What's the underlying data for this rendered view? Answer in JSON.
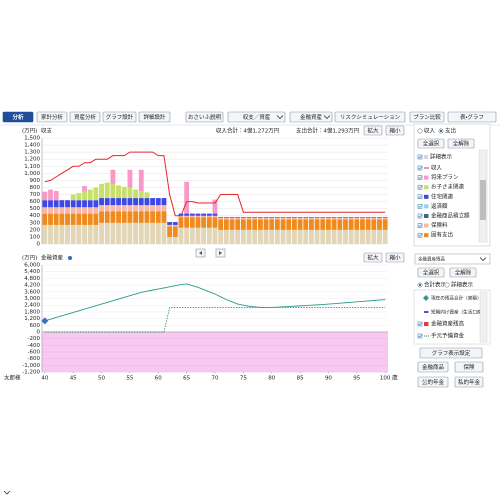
{
  "toolbar": {
    "tabs": [
      "分析",
      "家計分析",
      "資産分析",
      "グラフ設計",
      "詳細設計"
    ],
    "buttons": [
      "おさいふ説明",
      "収支／資産",
      "金融資産",
      "リスクシミュレーション",
      "プラン比較",
      "表・グラフ"
    ]
  },
  "chart_data": [
    {
      "type": "bar",
      "stacked": true,
      "unit": "(万円)",
      "title": "収支",
      "summary": [
        "収入合計：4億1,272万円",
        "支出合計：4億1,293万円"
      ],
      "zoom": [
        "拡大",
        "縮小"
      ],
      "x": [
        40,
        41,
        42,
        43,
        44,
        45,
        46,
        47,
        48,
        49,
        50,
        51,
        52,
        53,
        54,
        55,
        56,
        57,
        58,
        59,
        60,
        61,
        62,
        63,
        64,
        65,
        66,
        67,
        68,
        69,
        70,
        71,
        72,
        73,
        74,
        75,
        76,
        77,
        78,
        79,
        80,
        81,
        82,
        83,
        84,
        85,
        86,
        87,
        88,
        89,
        90,
        91,
        92,
        93,
        94,
        95,
        96,
        97,
        98,
        99,
        100
      ],
      "xlim": [
        39.5,
        100.5
      ],
      "ylim": [
        0,
        1500
      ],
      "yticks": [
        0,
        100,
        200,
        300,
        400,
        500,
        600,
        700,
        800,
        900,
        {
          "value": 1000,
          "label": "1,000"
        },
        {
          "value": 1100,
          "label": "1,100"
        },
        {
          "value": 1200,
          "label": "1,200"
        },
        {
          "value": 1300,
          "label": "1,300"
        },
        {
          "value": 1400,
          "label": "1,400"
        },
        {
          "value": 1500,
          "label": "1,500"
        }
      ],
      "grid": true,
      "series": [
        {
          "color": "#e2d6b6",
          "values": [
            270,
            270,
            270,
            270,
            270,
            270,
            270,
            270,
            270,
            270,
            300,
            300,
            300,
            300,
            300,
            300,
            300,
            300,
            300,
            300,
            300,
            300,
            100,
            100,
            230,
            230,
            230,
            230,
            230,
            230,
            230,
            200,
            200,
            200,
            200,
            200,
            200,
            200,
            200,
            200,
            200,
            200,
            200,
            200,
            200,
            200,
            200,
            200,
            200,
            200,
            200,
            200,
            200,
            200,
            200,
            200,
            200,
            200,
            200,
            200,
            200
          ]
        },
        {
          "name": "固有支出",
          "color": "#f08a1c",
          "values": [
            160,
            160,
            160,
            160,
            160,
            160,
            160,
            160,
            160,
            160,
            160,
            160,
            160,
            160,
            160,
            160,
            160,
            160,
            160,
            160,
            160,
            160,
            150,
            150,
            150,
            150,
            150,
            150,
            150,
            150,
            150,
            150,
            150,
            150,
            150,
            150,
            150,
            150,
            150,
            150,
            150,
            150,
            150,
            150,
            150,
            150,
            150,
            150,
            150,
            150,
            150,
            150,
            150,
            150,
            150,
            150,
            150,
            150,
            150,
            150,
            150
          ]
        },
        {
          "name": "保険料",
          "color": "#f7b8a6",
          "values": [
            90,
            90,
            90,
            90,
            90,
            90,
            90,
            90,
            90,
            90,
            90,
            90,
            90,
            90,
            90,
            90,
            90,
            90,
            90,
            90,
            90,
            90,
            20,
            20,
            20,
            20,
            20,
            20,
            20,
            20,
            20,
            20,
            20,
            20,
            20,
            20,
            20,
            20,
            20,
            20,
            20,
            20,
            20,
            20,
            20,
            20,
            20,
            20,
            20,
            20,
            20,
            20,
            20,
            20,
            20,
            20,
            20,
            20,
            20,
            20,
            20
          ]
        },
        {
          "name": "住宅関連",
          "color": "#3d47e6",
          "values": [
            100,
            100,
            100,
            100,
            100,
            100,
            100,
            100,
            100,
            100,
            100,
            100,
            100,
            100,
            100,
            100,
            100,
            100,
            100,
            100,
            100,
            100,
            40,
            40,
            30,
            30,
            30,
            30,
            30,
            30,
            30,
            10,
            10,
            10,
            10,
            10,
            10,
            10,
            10,
            10,
            10,
            10,
            10,
            10,
            10,
            10,
            10,
            10,
            10,
            10,
            10,
            10,
            10,
            10,
            10,
            10,
            10,
            10,
            10,
            10,
            10
          ]
        },
        {
          "name": "お子さま関連",
          "color": "#c7e06a",
          "values": [
            0,
            0,
            0,
            0,
            0,
            80,
            100,
            120,
            150,
            180,
            200,
            220,
            200,
            180,
            160,
            150,
            120,
            100,
            80,
            0,
            0,
            0,
            0,
            0,
            0,
            0,
            0,
            0,
            0,
            0,
            0,
            0,
            0,
            0,
            0,
            0,
            0,
            0,
            0,
            0,
            0,
            0,
            0,
            0,
            0,
            0,
            0,
            0,
            0,
            0,
            0,
            0,
            0,
            0,
            0,
            0,
            0,
            0,
            0,
            0,
            0
          ]
        },
        {
          "name": "将来プラン",
          "color": "#f79ac8",
          "values": [
            120,
            150,
            130,
            0,
            0,
            0,
            0,
            80,
            0,
            0,
            0,
            0,
            200,
            0,
            0,
            250,
            0,
            300,
            0,
            0,
            0,
            0,
            0,
            0,
            0,
            450,
            0,
            0,
            0,
            0,
            200,
            0,
            0,
            0,
            0,
            0,
            0,
            0,
            0,
            0,
            0,
            0,
            0,
            0,
            0,
            0,
            0,
            0,
            0,
            0,
            0,
            0,
            0,
            0,
            0,
            0,
            0,
            0,
            0,
            0,
            0
          ]
        }
      ],
      "line": {
        "name": "収入",
        "color": "#e8262a",
        "values": [
          880,
          900,
          950,
          1000,
          1050,
          1100,
          1100,
          1150,
          1150,
          1200,
          1200,
          1200,
          1250,
          1250,
          1250,
          1300,
          1300,
          1300,
          1300,
          1300,
          1250,
          1250,
          700,
          400,
          400,
          600,
          600,
          580,
          580,
          580,
          580,
          700,
          700,
          700,
          700,
          450,
          450,
          450,
          450,
          450,
          450,
          450,
          450,
          450,
          450,
          450,
          450,
          450,
          450,
          450,
          450,
          450,
          450,
          450,
          450,
          450,
          450,
          450,
          450,
          450,
          450
        ]
      }
    },
    {
      "type": "line",
      "unit": "(万円)",
      "title": "金融資産",
      "zoom": [
        "拡大",
        "縮小"
      ],
      "x": [
        40,
        41,
        42,
        43,
        44,
        45,
        46,
        47,
        48,
        49,
        50,
        51,
        52,
        53,
        54,
        55,
        56,
        57,
        58,
        59,
        60,
        61,
        62,
        63,
        64,
        65,
        66,
        67,
        68,
        69,
        70,
        71,
        72,
        73,
        74,
        75,
        76,
        77,
        78,
        79,
        80,
        81,
        82,
        83,
        84,
        85,
        86,
        87,
        88,
        89,
        90,
        91,
        92,
        93,
        94,
        95,
        96,
        97,
        98,
        99,
        100
      ],
      "xlim": [
        39.5,
        100.5
      ],
      "xticks": [
        40,
        45,
        50,
        55,
        60,
        65,
        70,
        75,
        80,
        85,
        90,
        95,
        100
      ],
      "x_prefix": "太郎様",
      "x_suffix": "歳",
      "ylim": [
        -1200,
        6000
      ],
      "yticks": [
        {
          "value": 6000,
          "label": "6,000"
        },
        {
          "value": 5400,
          "label": "5,400"
        },
        {
          "value": 4800,
          "label": "4,800"
        },
        {
          "value": 4200,
          "label": "4,200"
        },
        {
          "value": 3600,
          "label": "3,600"
        },
        {
          "value": 3000,
          "label": "3,000"
        },
        {
          "value": 2400,
          "label": "2,400"
        },
        {
          "value": 1800,
          "label": "1,800"
        },
        {
          "value": 1200,
          "label": "1,200"
        },
        600,
        0,
        -200,
        -400,
        -600,
        -800,
        {
          "value": -1000,
          "label": "-1,000"
        },
        {
          "value": -1200,
          "label": "-1,200"
        }
      ],
      "negative_fill": "#f8c8f2",
      "series": [
        {
          "name": "現在の残高合計（実額）",
          "color": "#2a9a8e",
          "values": [
            1000,
            1150,
            1300,
            1450,
            1600,
            1750,
            1900,
            2050,
            2200,
            2350,
            2500,
            2650,
            2800,
            2950,
            3100,
            3250,
            3400,
            3550,
            3650,
            3750,
            3850,
            3950,
            4050,
            4150,
            4250,
            4300,
            4150,
            4000,
            3800,
            3600,
            3400,
            3150,
            2900,
            2700,
            2500,
            2400,
            2300,
            2250,
            2200,
            2200,
            2200,
            2220,
            2250,
            2280,
            2310,
            2340,
            2370,
            2400,
            2430,
            2460,
            2500,
            2540,
            2580,
            2620,
            2660,
            2700,
            2740,
            2780,
            2820,
            2860,
            2900
          ]
        },
        {
          "name": "手元予備資金",
          "color": "#2e9a5a",
          "dashed": true,
          "values": [
            0,
            0,
            0,
            0,
            0,
            0,
            0,
            0,
            0,
            0,
            0,
            0,
            0,
            0,
            0,
            0,
            0,
            0,
            0,
            0,
            0,
            0,
            2200,
            2200,
            2200,
            2200,
            2200,
            2200,
            2200,
            2200,
            2200,
            2200,
            2200,
            2200,
            2200,
            2200,
            2200,
            2200,
            2200,
            2200,
            2200,
            2200,
            2200,
            2200,
            2200,
            2200,
            2200,
            2200,
            2200,
            2200,
            2200,
            2200,
            2200,
            2200,
            2200,
            2200,
            2200,
            2200,
            2200,
            2200,
            2200
          ]
        }
      ]
    }
  ],
  "upper_panel": {
    "radio": [
      "収入",
      "支出"
    ],
    "buttons": [
      "全選択",
      "全解除"
    ],
    "detail": "詳細表示",
    "others": [
      {
        "label": "返済額",
        "color": "#8fd6e8"
      },
      {
        "label": "金融商品積立額",
        "color": "#2f6f7a"
      }
    ]
  },
  "lower_panel": {
    "dropdown": "金融資産残高",
    "buttons": [
      "全選択",
      "全解除"
    ],
    "radio": [
      "合計表示",
      "詳細表示"
    ],
    "others": [
      {
        "label": "短期向け資産（生活口座）",
        "color": "#7a3bd0"
      },
      {
        "label": "金融資産残高",
        "color": "#e03c3c"
      }
    ],
    "settings": "グラフ表示設定",
    "links": [
      "金融商品",
      "保険",
      "公的年金",
      "私的年金"
    ]
  }
}
